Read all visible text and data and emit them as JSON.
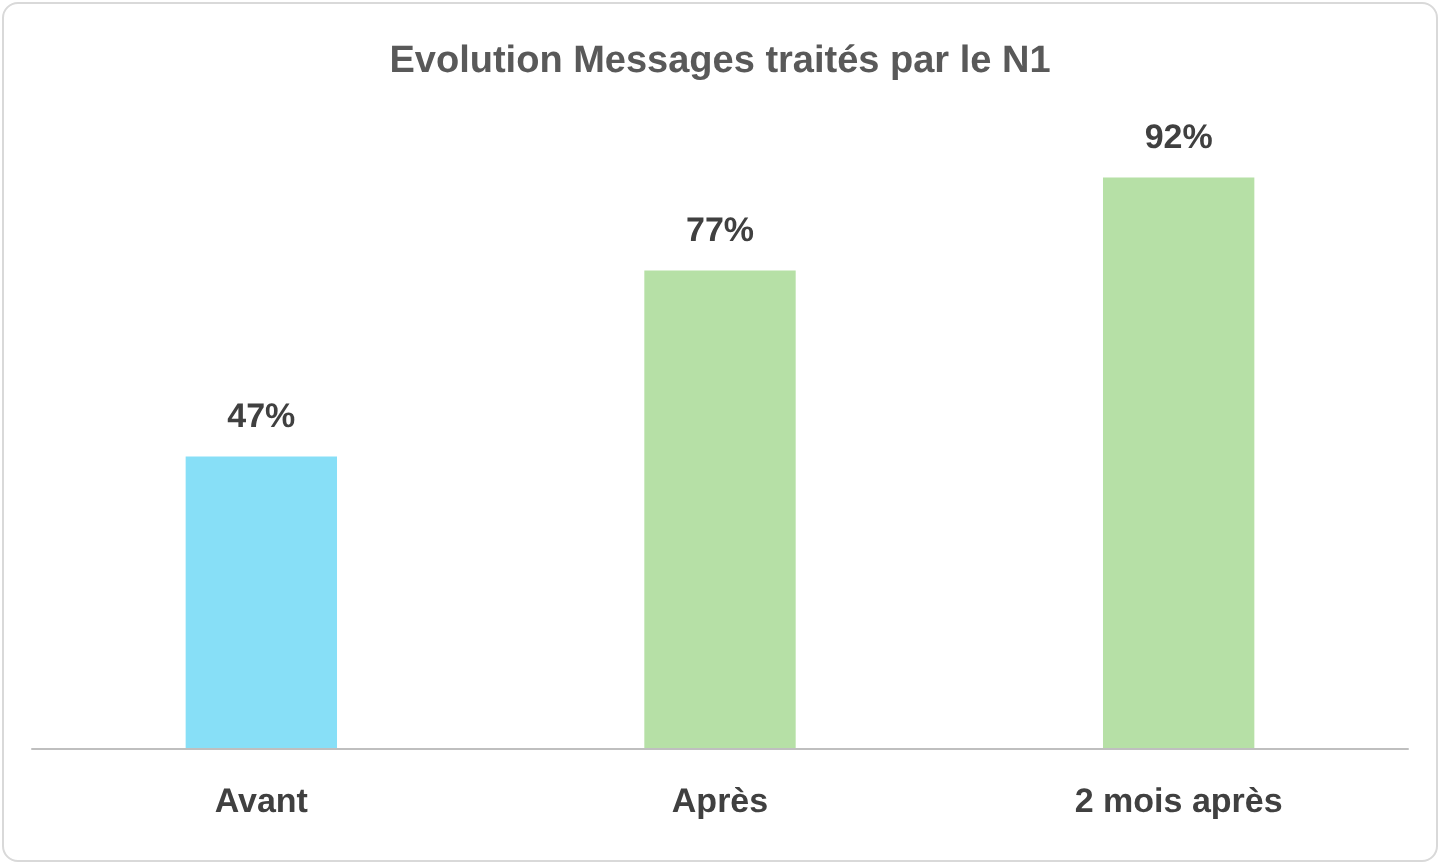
{
  "chart_data": {
    "type": "bar",
    "title": "Evolution Messages traités par le N1",
    "categories": [
      "Avant",
      "Après",
      "2 mois après"
    ],
    "values": [
      47,
      77,
      92
    ],
    "colors": [
      "#87dff7",
      "#b6e0a6",
      "#b6e0a6"
    ],
    "value_labels": [
      "47%",
      "77%",
      "92%"
    ]
  }
}
